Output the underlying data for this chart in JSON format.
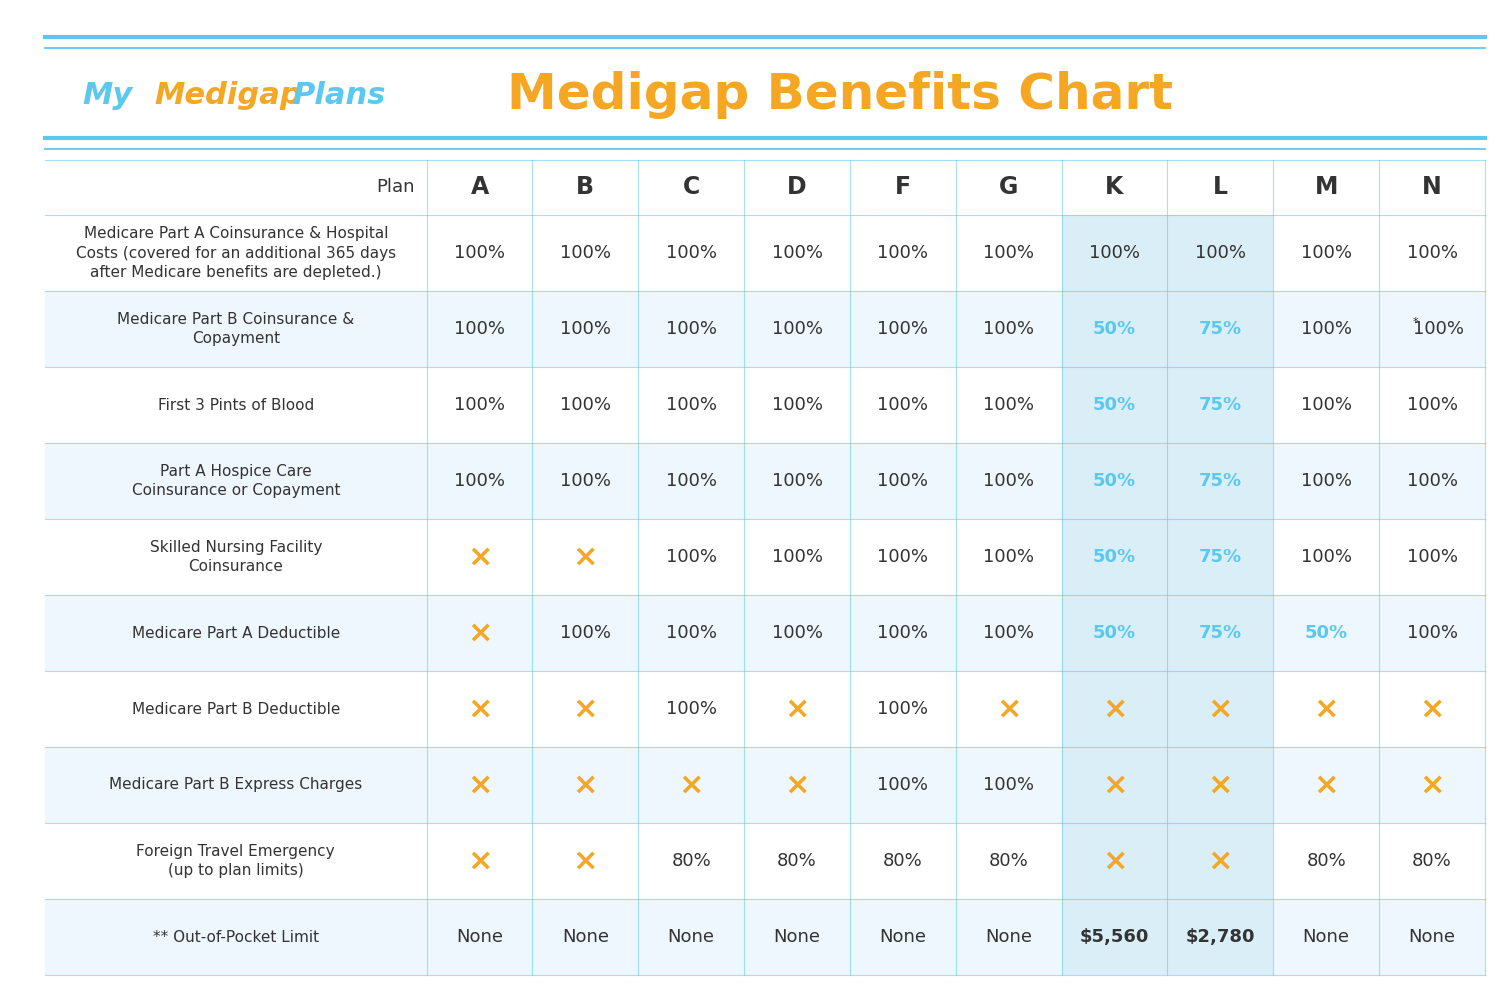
{
  "title": "Medigap Benefits Chart",
  "logo_color_my": "#5bc8f0",
  "logo_color_medigap": "#f5a623",
  "logo_color_plans": "#5bc8f0",
  "title_color": "#f5a623",
  "header_color": "#333333",
  "text_color": "#333333",
  "blue_color": "#5bc8f0",
  "x_color": "#f5a623",
  "line_color": "#5bc8f0",
  "bg_color": "#ffffff",
  "row_alt_color": "#eef7fd",
  "row_normal_color": "#ffffff",
  "col_highlight_color": "#daeef8",
  "plans": [
    "A",
    "B",
    "C",
    "D",
    "F",
    "G",
    "K",
    "L",
    "M",
    "N"
  ],
  "rows": [
    {
      "label": "Medicare Part A Coinsurance & Hospital\nCosts (covered for an additional 365 days\nafter Medicare benefits are depleted.)",
      "values": [
        "100%",
        "100%",
        "100%",
        "100%",
        "100%",
        "100%",
        "100%",
        "100%",
        "100%",
        "100%"
      ],
      "colors": [
        "dark",
        "dark",
        "dark",
        "dark",
        "dark",
        "dark",
        "dark",
        "dark",
        "dark",
        "dark"
      ]
    },
    {
      "label": "Medicare Part B Coinsurance &\nCopayment",
      "values": [
        "100%",
        "100%",
        "100%",
        "100%",
        "100%",
        "100%",
        "50%",
        "75%",
        "100%",
        "*100%"
      ],
      "colors": [
        "dark",
        "dark",
        "dark",
        "dark",
        "dark",
        "dark",
        "blue",
        "blue",
        "dark",
        "dark"
      ]
    },
    {
      "label": "First 3 Pints of Blood",
      "values": [
        "100%",
        "100%",
        "100%",
        "100%",
        "100%",
        "100%",
        "50%",
        "75%",
        "100%",
        "100%"
      ],
      "colors": [
        "dark",
        "dark",
        "dark",
        "dark",
        "dark",
        "dark",
        "blue",
        "blue",
        "dark",
        "dark"
      ]
    },
    {
      "label": "Part A Hospice Care\nCoinsurance or Copayment",
      "values": [
        "100%",
        "100%",
        "100%",
        "100%",
        "100%",
        "100%",
        "50%",
        "75%",
        "100%",
        "100%"
      ],
      "colors": [
        "dark",
        "dark",
        "dark",
        "dark",
        "dark",
        "dark",
        "blue",
        "blue",
        "dark",
        "dark"
      ]
    },
    {
      "label": "Skilled Nursing Facility\nCoinsurance",
      "values": [
        "X",
        "X",
        "100%",
        "100%",
        "100%",
        "100%",
        "50%",
        "75%",
        "100%",
        "100%"
      ],
      "colors": [
        "x",
        "x",
        "dark",
        "dark",
        "dark",
        "dark",
        "blue",
        "blue",
        "dark",
        "dark"
      ]
    },
    {
      "label": "Medicare Part A Deductible",
      "values": [
        "X",
        "100%",
        "100%",
        "100%",
        "100%",
        "100%",
        "50%",
        "75%",
        "50%",
        "100%"
      ],
      "colors": [
        "x",
        "dark",
        "dark",
        "dark",
        "dark",
        "dark",
        "blue",
        "blue",
        "blue",
        "dark"
      ]
    },
    {
      "label": "Medicare Part B Deductible",
      "values": [
        "X",
        "X",
        "100%",
        "X",
        "100%",
        "X",
        "X",
        "X",
        "X",
        "X"
      ],
      "colors": [
        "x",
        "x",
        "dark",
        "x",
        "dark",
        "x",
        "x",
        "x",
        "x",
        "x"
      ]
    },
    {
      "label": "Medicare Part B Express Charges",
      "values": [
        "X",
        "X",
        "X",
        "X",
        "100%",
        "100%",
        "X",
        "X",
        "X",
        "X"
      ],
      "colors": [
        "x",
        "x",
        "x",
        "x",
        "dark",
        "dark",
        "x",
        "x",
        "x",
        "x"
      ]
    },
    {
      "label": "Foreign Travel Emergency\n(up to plan limits)",
      "values": [
        "X",
        "X",
        "80%",
        "80%",
        "80%",
        "80%",
        "X",
        "X",
        "80%",
        "80%"
      ],
      "colors": [
        "x",
        "x",
        "dark",
        "dark",
        "dark",
        "dark",
        "x",
        "x",
        "dark",
        "dark"
      ]
    },
    {
      "label": "** Out-of-Pocket Limit",
      "values": [
        "None",
        "None",
        "None",
        "None",
        "None",
        "None",
        "$5,560",
        "$2,780",
        "None",
        "None"
      ],
      "colors": [
        "dark",
        "dark",
        "dark",
        "dark",
        "dark",
        "dark",
        "bold_dark",
        "bold_dark",
        "dark",
        "dark"
      ]
    }
  ]
}
